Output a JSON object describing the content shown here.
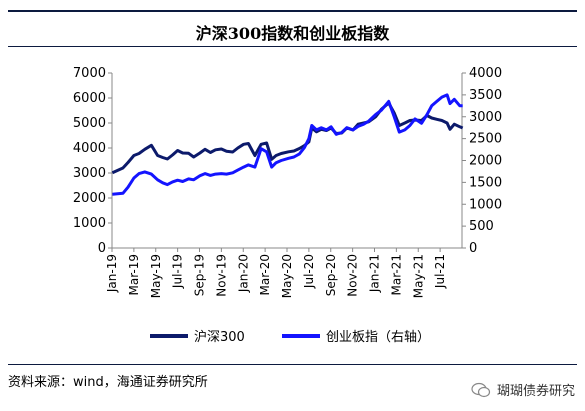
{
  "title": "沪深300指数和创业板指数",
  "source": "资料来源：wind，海通证券研究所",
  "watermark": "瑚瑚债券研究",
  "chart_data": {
    "type": "line",
    "title": "沪深300指数和创业板指数",
    "x_ticks": [
      "Jan-19",
      "Mar-19",
      "May-19",
      "Jul-19",
      "Sep-19",
      "Nov-19",
      "Jan-20",
      "Mar-20",
      "May-20",
      "Jul-20",
      "Sep-20",
      "Nov-20",
      "Jan-21",
      "Mar-21",
      "May-21",
      "Jul-21"
    ],
    "x_range": [
      "2019-01",
      "2021-09"
    ],
    "y_left": {
      "lim": [
        0,
        7000
      ],
      "ticks": [
        0,
        1000,
        2000,
        3000,
        4000,
        5000,
        6000,
        7000
      ]
    },
    "y_right": {
      "lim": [
        0,
        4000
      ],
      "ticks": [
        0,
        500,
        1000,
        1500,
        2000,
        2500,
        3000,
        3500,
        4000
      ]
    },
    "grid": false,
    "legend_position": "bottom",
    "series": [
      {
        "name": "沪深300",
        "axis": "left",
        "color": "#0c1a6b",
        "points": [
          [
            "2019-01-02",
            3010
          ],
          [
            "2019-01-31",
            3200
          ],
          [
            "2019-02-15",
            3420
          ],
          [
            "2019-03-01",
            3700
          ],
          [
            "2019-03-15",
            3780
          ],
          [
            "2019-04-01",
            3950
          ],
          [
            "2019-04-19",
            4110
          ],
          [
            "2019-05-06",
            3700
          ],
          [
            "2019-05-20",
            3620
          ],
          [
            "2019-06-03",
            3560
          ],
          [
            "2019-06-17",
            3720
          ],
          [
            "2019-07-01",
            3900
          ],
          [
            "2019-07-15",
            3800
          ],
          [
            "2019-08-01",
            3790
          ],
          [
            "2019-08-15",
            3640
          ],
          [
            "2019-09-02",
            3800
          ],
          [
            "2019-09-16",
            3950
          ],
          [
            "2019-10-01",
            3820
          ],
          [
            "2019-10-15",
            3930
          ],
          [
            "2019-11-01",
            3960
          ],
          [
            "2019-11-15",
            3870
          ],
          [
            "2019-12-02",
            3840
          ],
          [
            "2019-12-16",
            4000
          ],
          [
            "2020-01-02",
            4150
          ],
          [
            "2020-01-15",
            4180
          ],
          [
            "2020-02-03",
            3700
          ],
          [
            "2020-02-20",
            4150
          ],
          [
            "2020-03-05",
            4200
          ],
          [
            "2020-03-19",
            3550
          ],
          [
            "2020-04-01",
            3700
          ],
          [
            "2020-04-15",
            3780
          ],
          [
            "2020-05-05",
            3850
          ],
          [
            "2020-05-20",
            3880
          ],
          [
            "2020-06-05",
            3980
          ],
          [
            "2020-06-19",
            4100
          ],
          [
            "2020-07-01",
            4250
          ],
          [
            "2020-07-09",
            4800
          ],
          [
            "2020-07-22",
            4650
          ],
          [
            "2020-08-05",
            4750
          ],
          [
            "2020-08-19",
            4700
          ],
          [
            "2020-09-02",
            4800
          ],
          [
            "2020-09-16",
            4580
          ],
          [
            "2020-10-01",
            4600
          ],
          [
            "2020-10-15",
            4800
          ],
          [
            "2020-11-02",
            4720
          ],
          [
            "2020-11-16",
            4950
          ],
          [
            "2020-12-01",
            5000
          ],
          [
            "2020-12-15",
            5050
          ],
          [
            "2021-01-04",
            5250
          ],
          [
            "2021-01-20",
            5550
          ],
          [
            "2021-02-10",
            5800
          ],
          [
            "2021-02-25",
            5400
          ],
          [
            "2021-03-09",
            4900
          ],
          [
            "2021-03-24",
            5000
          ],
          [
            "2021-04-08",
            5100
          ],
          [
            "2021-04-22",
            5120
          ],
          [
            "2021-05-10",
            5100
          ],
          [
            "2021-05-25",
            5300
          ],
          [
            "2021-06-08",
            5200
          ],
          [
            "2021-06-22",
            5150
          ],
          [
            "2021-07-06",
            5100
          ],
          [
            "2021-07-20",
            5000
          ],
          [
            "2021-07-28",
            4750
          ],
          [
            "2021-08-10",
            4950
          ],
          [
            "2021-08-25",
            4850
          ],
          [
            "2021-09-03",
            4800
          ]
        ]
      },
      {
        "name": "创业板指（右轴）",
        "axis": "right",
        "color": "#1414ff",
        "points": [
          [
            "2019-01-02",
            1230
          ],
          [
            "2019-01-31",
            1250
          ],
          [
            "2019-02-15",
            1390
          ],
          [
            "2019-03-01",
            1600
          ],
          [
            "2019-03-15",
            1700
          ],
          [
            "2019-04-01",
            1740
          ],
          [
            "2019-04-19",
            1690
          ],
          [
            "2019-05-06",
            1560
          ],
          [
            "2019-05-20",
            1490
          ],
          [
            "2019-06-03",
            1450
          ],
          [
            "2019-06-17",
            1510
          ],
          [
            "2019-07-01",
            1550
          ],
          [
            "2019-07-15",
            1520
          ],
          [
            "2019-08-01",
            1580
          ],
          [
            "2019-08-15",
            1560
          ],
          [
            "2019-09-02",
            1650
          ],
          [
            "2019-09-16",
            1700
          ],
          [
            "2019-10-01",
            1660
          ],
          [
            "2019-10-15",
            1690
          ],
          [
            "2019-11-01",
            1700
          ],
          [
            "2019-11-15",
            1690
          ],
          [
            "2019-12-02",
            1720
          ],
          [
            "2019-12-16",
            1780
          ],
          [
            "2020-01-02",
            1850
          ],
          [
            "2020-01-15",
            1900
          ],
          [
            "2020-02-03",
            1850
          ],
          [
            "2020-02-20",
            2270
          ],
          [
            "2020-03-05",
            2200
          ],
          [
            "2020-03-19",
            1850
          ],
          [
            "2020-04-01",
            1950
          ],
          [
            "2020-04-15",
            2000
          ],
          [
            "2020-05-05",
            2050
          ],
          [
            "2020-05-20",
            2080
          ],
          [
            "2020-06-05",
            2150
          ],
          [
            "2020-06-19",
            2300
          ],
          [
            "2020-07-01",
            2500
          ],
          [
            "2020-07-09",
            2800
          ],
          [
            "2020-07-22",
            2700
          ],
          [
            "2020-08-05",
            2750
          ],
          [
            "2020-08-19",
            2700
          ],
          [
            "2020-09-02",
            2770
          ],
          [
            "2020-09-16",
            2600
          ],
          [
            "2020-10-01",
            2640
          ],
          [
            "2020-10-15",
            2750
          ],
          [
            "2020-11-02",
            2700
          ],
          [
            "2020-11-16",
            2780
          ],
          [
            "2020-12-01",
            2830
          ],
          [
            "2020-12-15",
            2900
          ],
          [
            "2021-01-04",
            3050
          ],
          [
            "2021-01-20",
            3150
          ],
          [
            "2021-02-10",
            3350
          ],
          [
            "2021-02-25",
            3000
          ],
          [
            "2021-03-09",
            2650
          ],
          [
            "2021-03-24",
            2700
          ],
          [
            "2021-04-08",
            2800
          ],
          [
            "2021-04-22",
            2950
          ],
          [
            "2021-05-10",
            2850
          ],
          [
            "2021-05-25",
            3050
          ],
          [
            "2021-06-08",
            3250
          ],
          [
            "2021-06-22",
            3350
          ],
          [
            "2021-07-06",
            3450
          ],
          [
            "2021-07-20",
            3500
          ],
          [
            "2021-07-28",
            3300
          ],
          [
            "2021-08-10",
            3400
          ],
          [
            "2021-08-25",
            3250
          ],
          [
            "2021-09-03",
            3250
          ]
        ]
      }
    ]
  }
}
